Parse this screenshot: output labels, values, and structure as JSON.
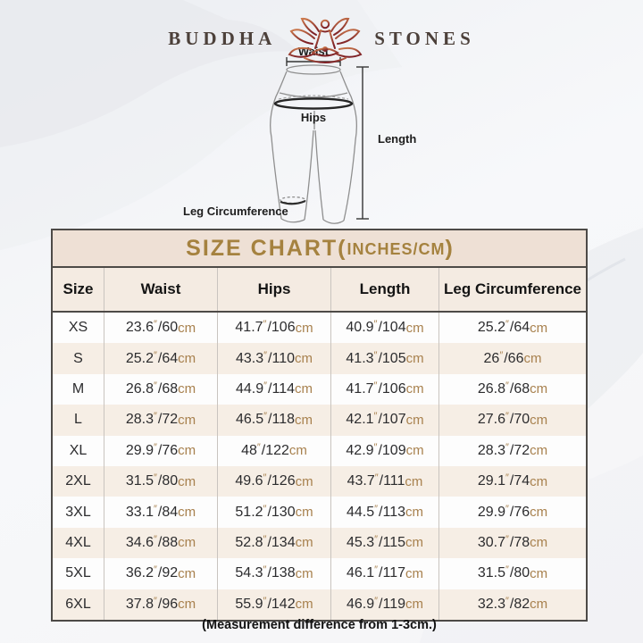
{
  "brand": {
    "left": "BUDDHA",
    "right": "STONES"
  },
  "diagram": {
    "labels": {
      "waist": "Waist",
      "hips": "Hips",
      "length": "Length",
      "leg_circumference": "Leg Circumference"
    }
  },
  "table": {
    "title_main": "SIZE CHART(",
    "title_sub": "INCHES/CM",
    "title_close": ")",
    "columns": [
      "Size",
      "Waist",
      "Hips",
      "Length",
      "Leg Circumference"
    ],
    "units": {
      "inch": "″",
      "cm": "cm"
    },
    "rows": [
      {
        "size": "XS",
        "waist": [
          "23.6",
          "60"
        ],
        "hips": [
          "41.7",
          "106"
        ],
        "length": [
          "40.9",
          "104"
        ],
        "leg": [
          "25.2",
          "64"
        ]
      },
      {
        "size": "S",
        "waist": [
          "25.2",
          "64"
        ],
        "hips": [
          "43.3",
          "110"
        ],
        "length": [
          "41.3",
          "105"
        ],
        "leg": [
          "26",
          "66"
        ]
      },
      {
        "size": "M",
        "waist": [
          "26.8",
          "68"
        ],
        "hips": [
          "44.9",
          "114"
        ],
        "length": [
          "41.7",
          "106"
        ],
        "leg": [
          "26.8",
          "68"
        ]
      },
      {
        "size": "L",
        "waist": [
          "28.3",
          "72"
        ],
        "hips": [
          "46.5",
          "118"
        ],
        "length": [
          "42.1",
          "107"
        ],
        "leg": [
          "27.6",
          "70"
        ]
      },
      {
        "size": "XL",
        "waist": [
          "29.9",
          "76"
        ],
        "hips": [
          "48",
          "122"
        ],
        "length": [
          "42.9",
          "109"
        ],
        "leg": [
          "28.3",
          "72"
        ]
      },
      {
        "size": "2XL",
        "waist": [
          "31.5",
          "80"
        ],
        "hips": [
          "49.6",
          "126"
        ],
        "length": [
          "43.7",
          "111"
        ],
        "leg": [
          "29.1",
          "74"
        ]
      },
      {
        "size": "3XL",
        "waist": [
          "33.1",
          "84"
        ],
        "hips": [
          "51.2",
          "130"
        ],
        "length": [
          "44.5",
          "113"
        ],
        "leg": [
          "29.9",
          "76"
        ]
      },
      {
        "size": "4XL",
        "waist": [
          "34.6",
          "88"
        ],
        "hips": [
          "52.8",
          "134"
        ],
        "length": [
          "45.3",
          "115"
        ],
        "leg": [
          "30.7",
          "78"
        ]
      },
      {
        "size": "5XL",
        "waist": [
          "36.2",
          "92"
        ],
        "hips": [
          "54.3",
          "138"
        ],
        "length": [
          "46.1",
          "117"
        ],
        "leg": [
          "31.5",
          "80"
        ]
      },
      {
        "size": "6XL",
        "waist": [
          "37.8",
          "96"
        ],
        "hips": [
          "55.9",
          "142"
        ],
        "length": [
          "46.9",
          "119"
        ],
        "leg": [
          "32.3",
          "82"
        ]
      }
    ]
  },
  "footer": {
    "note": "(Measurement difference from 1-3cm.)"
  },
  "colors": {
    "title_bg": "#eee0d5",
    "header_bg": "#f4ebe2",
    "row_alt_bg": "#f6eee5",
    "accent_gold": "#a5823f",
    "unit_tan": "#a8814e",
    "logo_red": "#8c2b28",
    "border_dark": "#4d4a47"
  }
}
